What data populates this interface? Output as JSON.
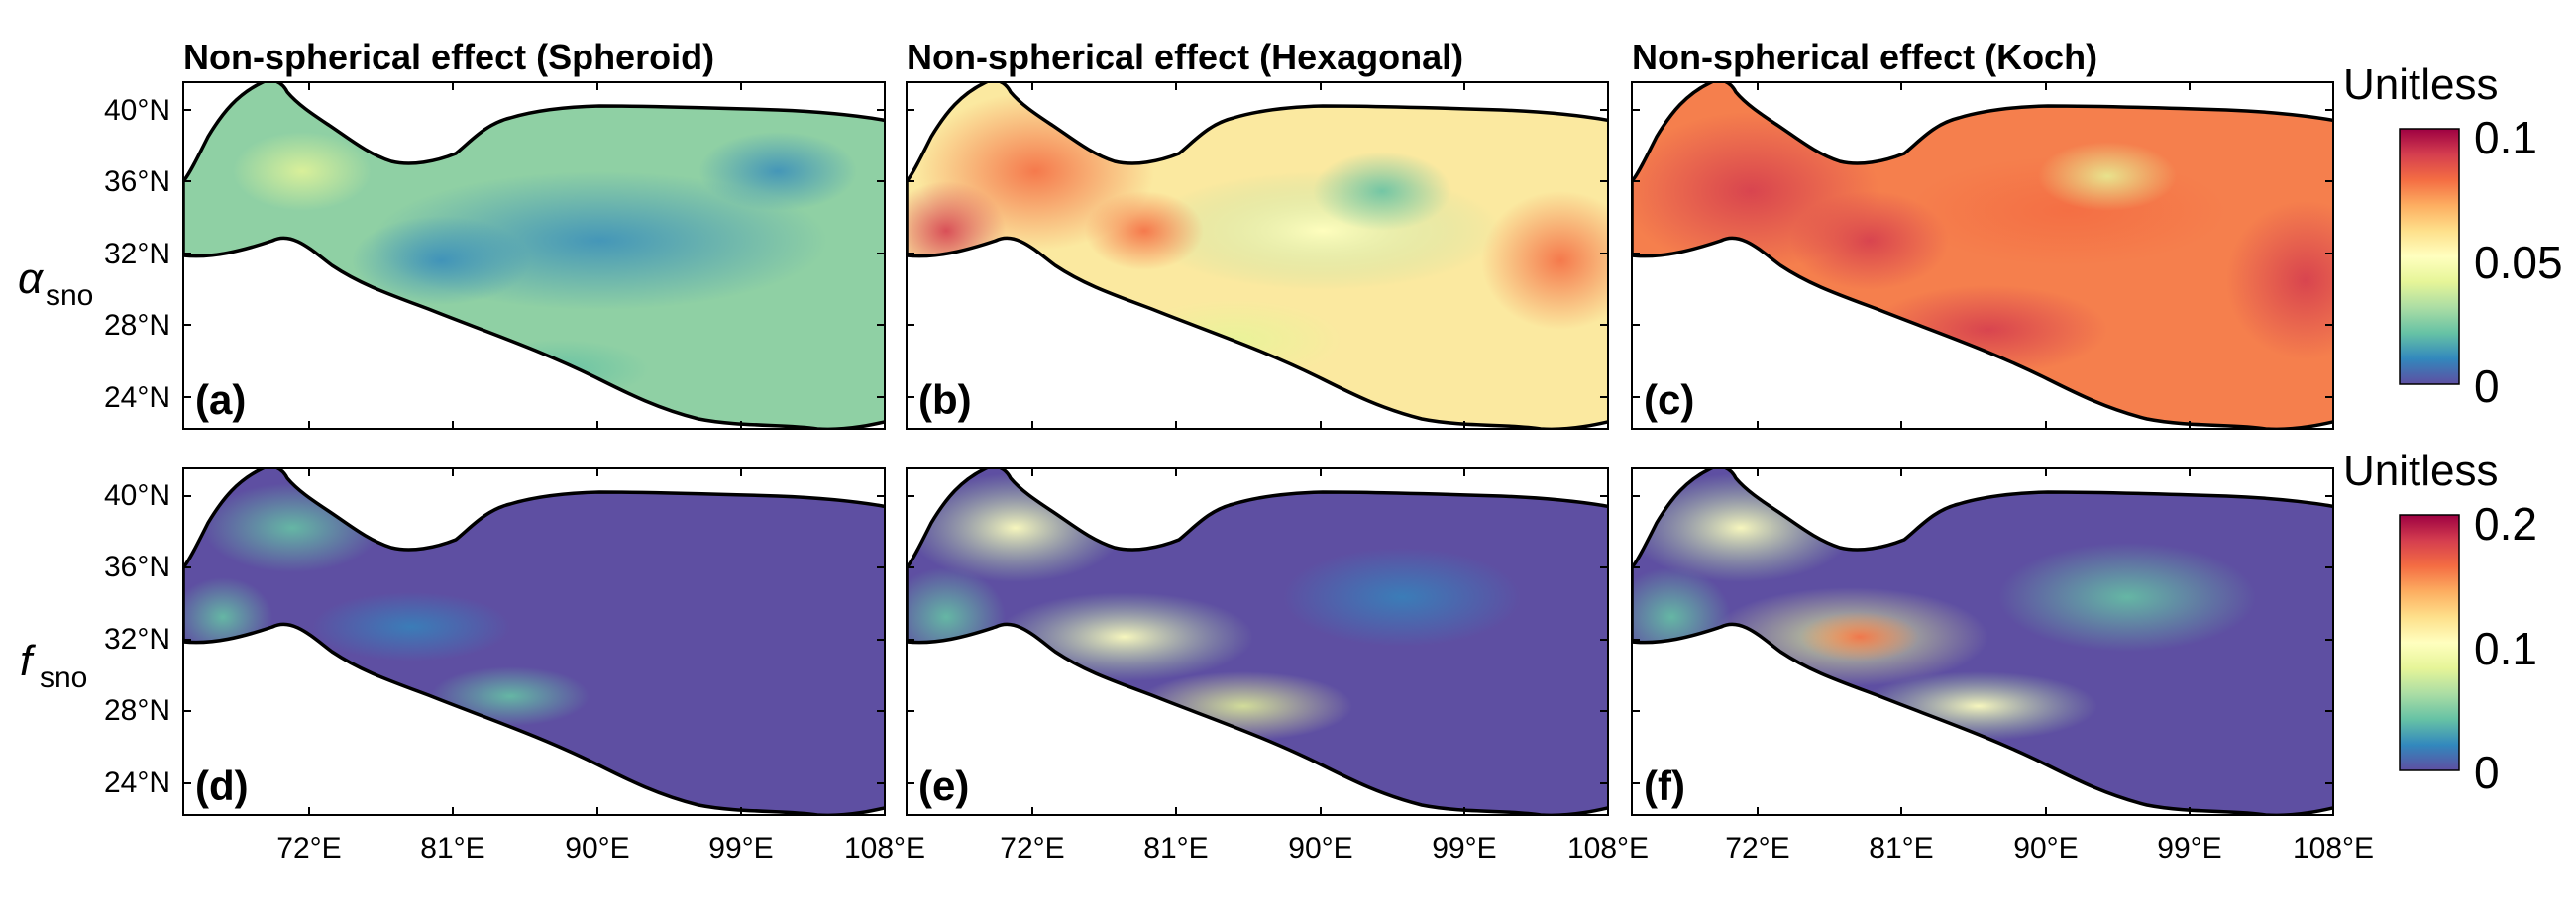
{
  "panel_titles": [
    "Non-spherical effect (Spheroid)",
    "Non-spherical effect (Hexagonal)",
    "Non-spherical effect (Koch)"
  ],
  "panel_letters": [
    "(a)",
    "(b)",
    "(c)",
    "(d)",
    "(e)",
    "(f)"
  ],
  "row_labels": [
    {
      "symbol": "α",
      "subscript": "sno"
    },
    {
      "symbol": "f",
      "subscript": "sno"
    }
  ],
  "lat_ticks": [
    "40°N",
    "36°N",
    "32°N",
    "28°N",
    "24°N"
  ],
  "lon_ticks": [
    "72°E",
    "81°E",
    "90°E",
    "99°E",
    "108°E"
  ],
  "colorbars": [
    {
      "unit": "Unitless",
      "ticks": [
        "0.1",
        "0.05",
        "0"
      ],
      "range": [
        0,
        0.1
      ]
    },
    {
      "unit": "Unitless",
      "ticks": [
        "0.2",
        "0.1",
        "0"
      ],
      "range": [
        0,
        0.2
      ]
    }
  ],
  "colormap": "Spectral (reversed)",
  "colors": {
    "spectral_stops": [
      "#5e4fa2",
      "#3288bd",
      "#66c2a5",
      "#abdda4",
      "#e6f598",
      "#ffffbf",
      "#fee08b",
      "#fdae61",
      "#f46d43",
      "#d53e4f",
      "#9e0142"
    ],
    "outline": "#000000"
  }
}
